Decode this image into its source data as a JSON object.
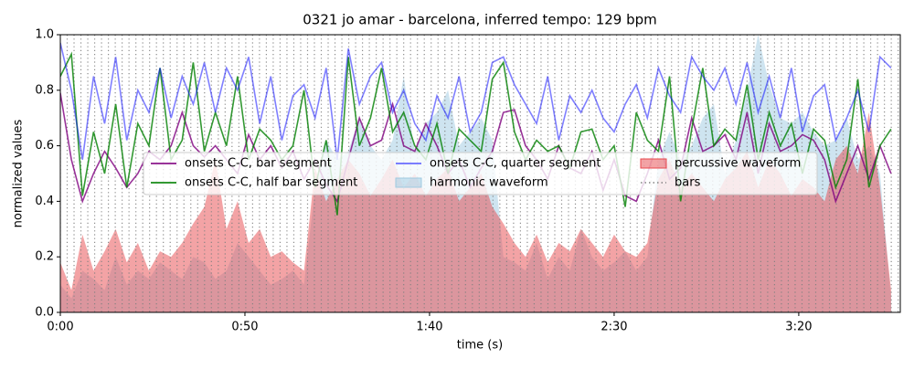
{
  "chart_data": {
    "type": "line",
    "title": "0321 jo amar - barcelona, inferred tempo: 129 bpm",
    "xlabel": "time (s)",
    "ylabel": "normalized values",
    "xlim": [
      0,
      227.5
    ],
    "ylim": [
      0,
      1
    ],
    "xticks": [
      {
        "value": 0,
        "label": "0:00"
      },
      {
        "value": 50,
        "label": "0:50"
      },
      {
        "value": 100,
        "label": "1:40"
      },
      {
        "value": 150,
        "label": "2:30"
      },
      {
        "value": 200,
        "label": "3:20"
      }
    ],
    "yticks": [
      {
        "value": 0,
        "label": "0.0"
      },
      {
        "value": 0.2,
        "label": "0.2"
      },
      {
        "value": 0.4,
        "label": "0.4"
      },
      {
        "value": 0.6,
        "label": "0.6"
      },
      {
        "value": 0.8,
        "label": "0.8"
      },
      {
        "value": 1,
        "label": "1.0"
      }
    ],
    "legend": "center",
    "legend_columns": 3,
    "x": [
      0,
      3,
      6,
      9,
      12,
      15,
      18,
      21,
      24,
      27,
      30,
      33,
      36,
      39,
      42,
      45,
      48,
      51,
      54,
      57,
      60,
      63,
      66,
      69,
      72,
      75,
      78,
      81,
      84,
      87,
      90,
      93,
      96,
      99,
      102,
      105,
      108,
      111,
      114,
      117,
      120,
      123,
      126,
      129,
      132,
      135,
      138,
      141,
      144,
      147,
      150,
      153,
      156,
      159,
      162,
      165,
      168,
      171,
      174,
      177,
      180,
      183,
      186,
      189,
      192,
      195,
      198,
      201,
      204,
      207,
      210,
      213,
      216,
      219,
      222,
      225
    ],
    "series": [
      {
        "name": "onsets C-C, bar segment",
        "style": "line",
        "color": "#800080",
        "opacity": 0.8,
        "values": [
          0.79,
          0.55,
          0.4,
          0.5,
          0.58,
          0.52,
          0.45,
          0.5,
          0.58,
          0.55,
          0.6,
          0.72,
          0.6,
          0.56,
          0.6,
          0.55,
          0.5,
          0.64,
          0.55,
          0.6,
          0.52,
          0.58,
          0.48,
          0.55,
          0.46,
          0.4,
          0.55,
          0.7,
          0.6,
          0.62,
          0.75,
          0.6,
          0.58,
          0.68,
          0.6,
          0.5,
          0.55,
          0.45,
          0.52,
          0.58,
          0.72,
          0.73,
          0.6,
          0.55,
          0.48,
          0.6,
          0.52,
          0.5,
          0.58,
          0.44,
          0.55,
          0.42,
          0.4,
          0.5,
          0.62,
          0.48,
          0.52,
          0.7,
          0.58,
          0.6,
          0.64,
          0.55,
          0.72,
          0.5,
          0.68,
          0.58,
          0.6,
          0.64,
          0.62,
          0.55,
          0.4,
          0.5,
          0.6,
          0.48,
          0.6,
          0.5
        ]
      },
      {
        "name": "onsets C-C, half bar segment",
        "style": "line",
        "color": "#008000",
        "opacity": 0.8,
        "values": [
          0.85,
          0.93,
          0.42,
          0.65,
          0.5,
          0.75,
          0.45,
          0.68,
          0.6,
          0.88,
          0.55,
          0.62,
          0.9,
          0.58,
          0.72,
          0.6,
          0.85,
          0.55,
          0.66,
          0.62,
          0.55,
          0.6,
          0.8,
          0.45,
          0.62,
          0.35,
          0.92,
          0.6,
          0.7,
          0.88,
          0.65,
          0.72,
          0.6,
          0.55,
          0.68,
          0.5,
          0.66,
          0.62,
          0.58,
          0.84,
          0.9,
          0.65,
          0.55,
          0.62,
          0.58,
          0.6,
          0.52,
          0.65,
          0.66,
          0.55,
          0.6,
          0.38,
          0.72,
          0.62,
          0.58,
          0.85,
          0.4,
          0.66,
          0.88,
          0.6,
          0.66,
          0.62,
          0.82,
          0.55,
          0.72,
          0.6,
          0.68,
          0.5,
          0.66,
          0.62,
          0.45,
          0.55,
          0.84,
          0.45,
          0.6,
          0.66
        ]
      },
      {
        "name": "onsets C-C, quarter segment",
        "style": "line",
        "color": "#0000ff",
        "opacity": 0.5,
        "values": [
          0.97,
          0.8,
          0.55,
          0.85,
          0.68,
          0.92,
          0.62,
          0.8,
          0.72,
          0.88,
          0.7,
          0.85,
          0.75,
          0.9,
          0.72,
          0.88,
          0.8,
          0.92,
          0.68,
          0.85,
          0.62,
          0.78,
          0.82,
          0.7,
          0.88,
          0.55,
          0.95,
          0.75,
          0.85,
          0.9,
          0.72,
          0.8,
          0.68,
          0.62,
          0.78,
          0.7,
          0.85,
          0.65,
          0.72,
          0.9,
          0.92,
          0.82,
          0.75,
          0.68,
          0.85,
          0.62,
          0.78,
          0.72,
          0.8,
          0.7,
          0.65,
          0.75,
          0.82,
          0.7,
          0.88,
          0.78,
          0.72,
          0.92,
          0.85,
          0.8,
          0.88,
          0.75,
          0.9,
          0.72,
          0.85,
          0.7,
          0.88,
          0.65,
          0.78,
          0.82,
          0.62,
          0.7,
          0.8,
          0.65,
          0.92,
          0.88
        ]
      },
      {
        "name": "harmonic waveform",
        "style": "area",
        "color": "#9ecae1",
        "opacity": 0.5,
        "values": [
          0.1,
          0.05,
          0.15,
          0.12,
          0.08,
          0.2,
          0.1,
          0.15,
          0.12,
          0.18,
          0.15,
          0.12,
          0.2,
          0.18,
          0.12,
          0.15,
          0.25,
          0.2,
          0.15,
          0.1,
          0.12,
          0.15,
          0.1,
          0.45,
          0.62,
          0.55,
          0.58,
          0.7,
          0.6,
          0.55,
          0.62,
          0.85,
          0.58,
          0.68,
          0.72,
          0.8,
          0.6,
          0.65,
          0.7,
          0.62,
          0.2,
          0.18,
          0.15,
          0.25,
          0.12,
          0.2,
          0.15,
          0.3,
          0.2,
          0.15,
          0.18,
          0.22,
          0.15,
          0.2,
          0.55,
          0.65,
          0.55,
          0.6,
          0.7,
          0.75,
          0.5,
          0.62,
          0.8,
          1.0,
          0.82,
          0.7,
          0.68,
          0.72,
          0.65,
          0.6,
          0.62,
          0.7,
          0.55,
          0.6,
          0.5,
          0.05
        ]
      },
      {
        "name": "percussive waveform",
        "style": "area",
        "color": "#e8474c",
        "opacity": 0.5,
        "values": [
          0.18,
          0.08,
          0.28,
          0.15,
          0.22,
          0.3,
          0.18,
          0.25,
          0.15,
          0.22,
          0.2,
          0.25,
          0.32,
          0.38,
          0.55,
          0.3,
          0.4,
          0.25,
          0.3,
          0.2,
          0.22,
          0.18,
          0.15,
          0.52,
          0.4,
          0.48,
          0.55,
          0.5,
          0.42,
          0.48,
          0.55,
          0.45,
          0.5,
          0.42,
          0.48,
          0.52,
          0.4,
          0.45,
          0.5,
          0.38,
          0.32,
          0.25,
          0.2,
          0.28,
          0.18,
          0.25,
          0.22,
          0.3,
          0.25,
          0.2,
          0.28,
          0.22,
          0.2,
          0.25,
          0.48,
          0.55,
          0.45,
          0.5,
          0.45,
          0.4,
          0.48,
          0.52,
          0.58,
          0.45,
          0.55,
          0.5,
          0.42,
          0.48,
          0.45,
          0.4,
          0.55,
          0.6,
          0.5,
          0.72,
          0.45,
          0.08
        ]
      },
      {
        "name": "bars",
        "style": "vlines",
        "color": "#808080",
        "opacity": 0.9,
        "x": [
          0,
          1.86,
          3.72,
          5.58,
          7.44,
          9.3,
          11.16,
          13.02,
          14.88,
          16.74,
          18.6,
          20.46,
          22.32,
          24.18,
          26.04,
          27.9,
          29.76,
          31.62,
          33.48,
          35.34,
          37.2,
          39.06,
          40.92,
          42.78,
          44.64,
          46.5,
          48.36,
          50.22,
          52.08,
          53.94,
          55.8,
          57.66,
          59.52,
          61.38,
          63.24,
          65.1,
          66.96,
          68.82,
          70.68,
          72.54,
          74.4,
          76.26,
          78.12,
          79.98,
          81.84,
          83.7,
          85.56,
          87.42,
          89.28,
          91.14,
          93,
          94.86,
          96.72,
          98.58,
          100.44,
          102.3,
          104.16,
          106.02,
          107.88,
          109.74,
          111.6,
          113.46,
          115.32,
          117.18,
          119.04,
          120.9,
          122.76,
          124.62,
          126.48,
          128.34,
          130.2,
          132.06,
          133.92,
          135.78,
          137.64,
          139.5,
          141.36,
          143.22,
          145.08,
          146.94,
          148.8,
          150.66,
          152.52,
          154.38,
          156.24,
          158.1,
          159.96,
          161.82,
          163.68,
          165.54,
          167.4,
          169.26,
          171.12,
          172.98,
          174.84,
          176.7,
          178.56,
          180.42,
          182.28,
          184.14,
          186,
          187.86,
          189.72,
          191.58,
          193.44,
          195.3,
          197.16,
          199.02,
          200.88,
          202.74,
          204.6,
          206.46,
          208.32,
          210.18,
          212.04,
          213.9,
          215.76,
          217.62,
          219.48,
          221.34,
          223.2,
          225.06,
          226.92
        ]
      }
    ]
  }
}
